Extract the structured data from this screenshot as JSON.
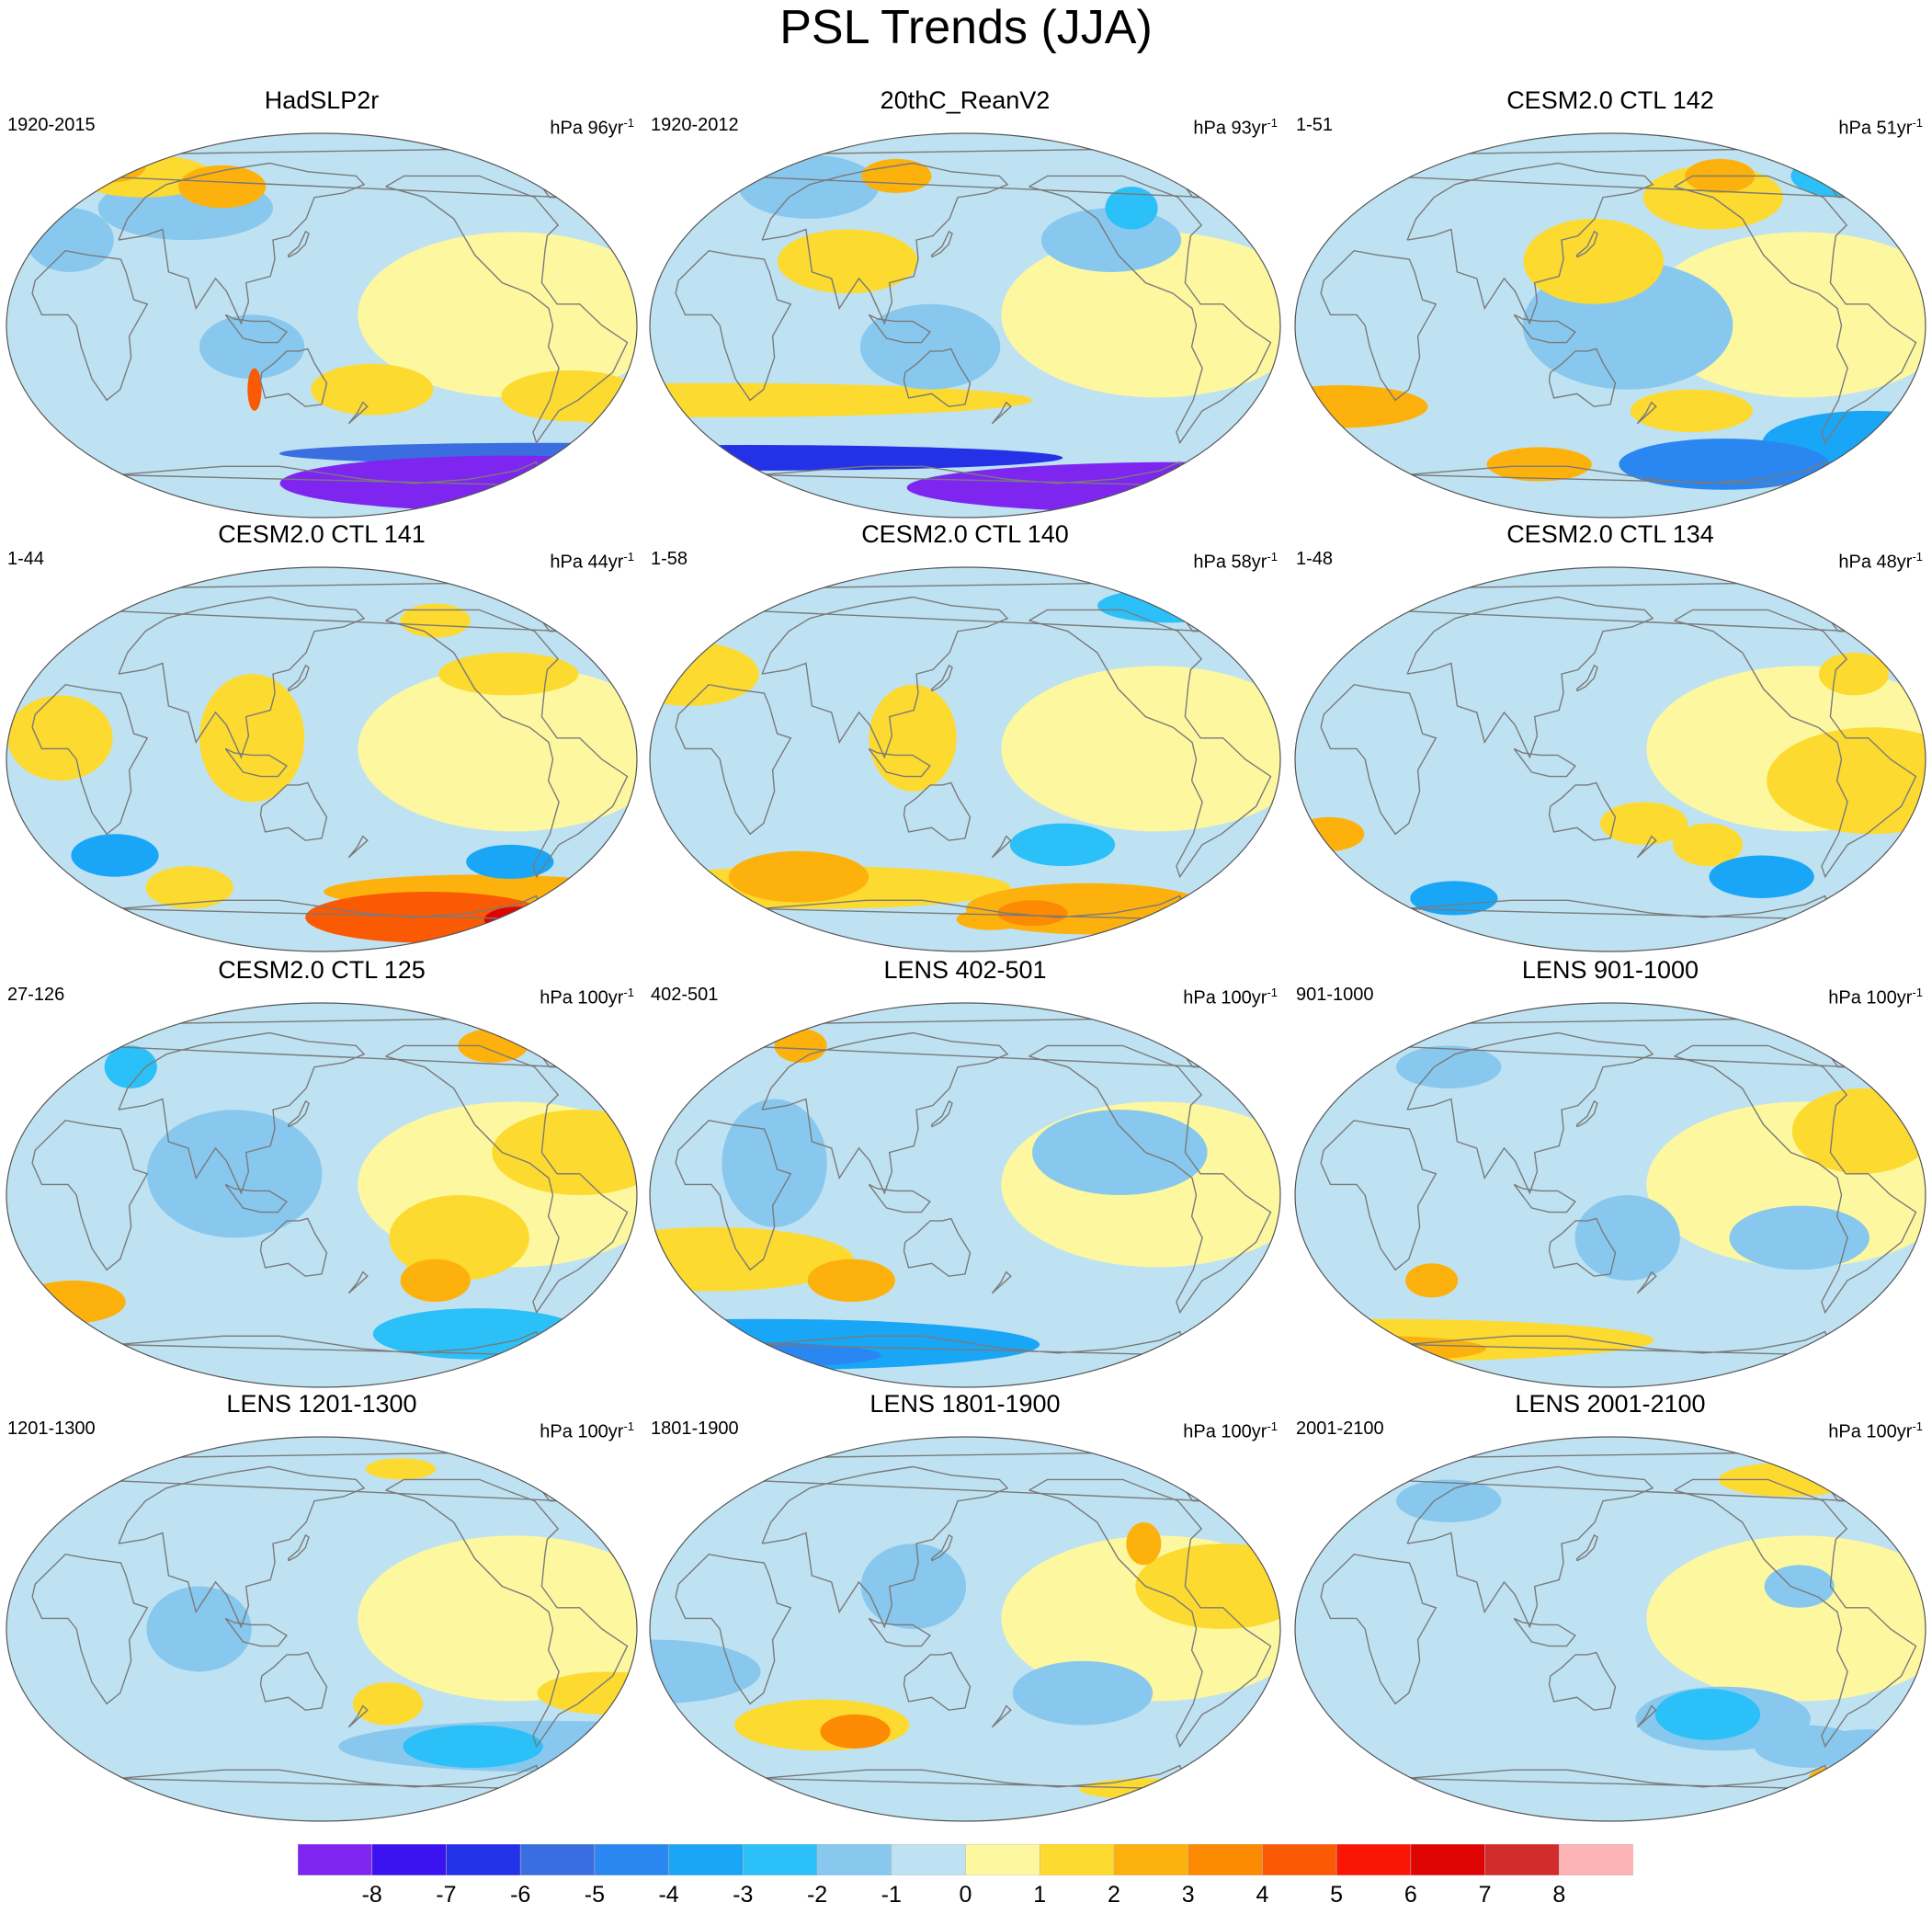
{
  "title": "PSL Trends (JJA)",
  "panels": [
    {
      "title": "HadSLP2r",
      "period": "1920-2015",
      "units_prefix": "hPa ",
      "units_number": "96",
      "units_unit": "yr",
      "units_exp": "-1",
      "features": [
        {
          "v": -9,
          "lon": -70,
          "lat": -74,
          "rx": 130,
          "ry": 13
        },
        {
          "v": -5,
          "lon": -60,
          "lat": -60,
          "rx": 150,
          "ry": 5
        },
        {
          "v": 1,
          "lon": -60,
          "lat": -33,
          "rx": 40,
          "ry": 12
        },
        {
          "v": 1,
          "lon": 180,
          "lat": -30,
          "rx": 35,
          "ry": 12
        },
        {
          "v": 1,
          "lon": -40,
          "lat": -40,
          "rx": 15,
          "ry": 6
        },
        {
          "v": -1,
          "lon": 60,
          "lat": 55,
          "rx": 50,
          "ry": 15
        },
        {
          "v": -1,
          "lon": -5,
          "lat": 40,
          "rx": 25,
          "ry": 15
        },
        {
          "v": 1,
          "lon": 20,
          "lat": 70,
          "rx": 40,
          "ry": 10
        },
        {
          "v": 2,
          "lon": 80,
          "lat": 65,
          "rx": 25,
          "ry": 10
        },
        {
          "v": 2,
          "lon": -10,
          "lat": 75,
          "rx": 20,
          "ry": 8
        },
        {
          "v": -1,
          "lon": 110,
          "lat": -10,
          "rx": 30,
          "ry": 15
        },
        {
          "v": 4,
          "lon": 110,
          "lat": -30,
          "rx": 4,
          "ry": 10
        }
      ]
    },
    {
      "title": "20thC_ReanV2",
      "period": "1920-2012",
      "units_prefix": "hPa ",
      "units_number": "93",
      "units_unit": "yr",
      "units_exp": "-1",
      "features": [
        {
          "v": -9,
          "lon": -40,
          "lat": -76,
          "rx": 160,
          "ry": 12
        },
        {
          "v": -6,
          "lon": 0,
          "lat": -62,
          "rx": 180,
          "ry": 6
        },
        {
          "v": 1,
          "lon": 0,
          "lat": -35,
          "rx": 180,
          "ry": 8
        },
        {
          "v": -1,
          "lon": 130,
          "lat": -10,
          "rx": 40,
          "ry": 20
        },
        {
          "v": -1,
          "lon": -120,
          "lat": 40,
          "rx": 40,
          "ry": 15
        },
        {
          "v": -2,
          "lon": -100,
          "lat": 55,
          "rx": 15,
          "ry": 10
        },
        {
          "v": 1,
          "lon": 80,
          "lat": 30,
          "rx": 40,
          "ry": 15
        },
        {
          "v": 2,
          "lon": 100,
          "lat": 70,
          "rx": 20,
          "ry": 8
        },
        {
          "v": -1,
          "lon": 40,
          "lat": 65,
          "rx": 40,
          "ry": 15
        }
      ]
    },
    {
      "title": "CESM2.0 CTL 142",
      "period": "1-51",
      "units_prefix": "hPa ",
      "units_number": "51",
      "units_unit": "yr",
      "units_exp": "-1",
      "features": [
        {
          "v": -4,
          "lon": -130,
          "lat": -65,
          "rx": 60,
          "ry": 12
        },
        {
          "v": -3,
          "lon": -40,
          "lat": -55,
          "rx": 60,
          "ry": 15
        },
        {
          "v": 2,
          "lon": -15,
          "lat": -38,
          "rx": 50,
          "ry": 10
        },
        {
          "v": 2,
          "lon": 100,
          "lat": -65,
          "rx": 30,
          "ry": 8
        },
        {
          "v": 1,
          "lon": -160,
          "lat": -40,
          "rx": 35,
          "ry": 10
        },
        {
          "v": -1,
          "lon": 160,
          "lat": 0,
          "rx": 60,
          "ry": 30
        },
        {
          "v": 1,
          "lon": -140,
          "lat": 60,
          "rx": 40,
          "ry": 15
        },
        {
          "v": 2,
          "lon": -130,
          "lat": 70,
          "rx": 20,
          "ry": 8
        },
        {
          "v": -2,
          "lon": -40,
          "lat": 70,
          "rx": 30,
          "ry": 10
        },
        {
          "v": 1,
          "lon": 140,
          "lat": 30,
          "rx": 40,
          "ry": 20
        }
      ]
    },
    {
      "title": "CESM2.0 CTL 141",
      "period": "1-44",
      "units_prefix": "hPa ",
      "units_number": "44",
      "units_unit": "yr",
      "units_exp": "-1",
      "features": [
        {
          "v": 4,
          "lon": -130,
          "lat": -74,
          "rx": 70,
          "ry": 12
        },
        {
          "v": 6,
          "lon": -60,
          "lat": -75,
          "rx": 20,
          "ry": 6
        },
        {
          "v": 2,
          "lon": -100,
          "lat": -62,
          "rx": 90,
          "ry": 8
        },
        {
          "v": -3,
          "lon": -90,
          "lat": -48,
          "rx": 25,
          "ry": 8
        },
        {
          "v": -3,
          "lon": 20,
          "lat": -45,
          "rx": 25,
          "ry": 10
        },
        {
          "v": 1,
          "lon": 60,
          "lat": -60,
          "rx": 25,
          "ry": 10
        },
        {
          "v": 1,
          "lon": -95,
          "lat": 40,
          "rx": 40,
          "ry": 10
        },
        {
          "v": 1,
          "lon": -130,
          "lat": 65,
          "rx": 20,
          "ry": 8
        },
        {
          "v": 1,
          "lon": 0,
          "lat": 10,
          "rx": 30,
          "ry": 20
        },
        {
          "v": 1,
          "lon": 110,
          "lat": 10,
          "rx": 30,
          "ry": 30
        }
      ]
    },
    {
      "title": "CESM2.0 CTL 140",
      "period": "1-58",
      "units_prefix": "hPa ",
      "units_number": "58",
      "units_unit": "yr",
      "units_exp": "-1",
      "features": [
        {
          "v": 2,
          "lon": -120,
          "lat": -70,
          "rx": 70,
          "ry": 12
        },
        {
          "v": 3,
          "lon": -160,
          "lat": -72,
          "rx": 20,
          "ry": 6
        },
        {
          "v": 2,
          "lon": 40,
          "lat": -55,
          "rx": 40,
          "ry": 12
        },
        {
          "v": 1,
          "lon": 50,
          "lat": -60,
          "rx": 110,
          "ry": 10
        },
        {
          "v": 2,
          "lon": 170,
          "lat": -75,
          "rx": 20,
          "ry": 5
        },
        {
          "v": -2,
          "lon": -150,
          "lat": -40,
          "rx": 30,
          "ry": 10
        },
        {
          "v": 1,
          "lon": -20,
          "lat": 40,
          "rx": 40,
          "ry": 15
        },
        {
          "v": -2,
          "lon": -60,
          "lat": 72,
          "rx": 40,
          "ry": 8
        },
        {
          "v": 1,
          "lon": 120,
          "lat": 10,
          "rx": 25,
          "ry": 25
        }
      ]
    },
    {
      "title": "CESM2.0 CTL 134",
      "period": "1-48",
      "units_prefix": "hPa ",
      "units_number": "48",
      "units_unit": "yr",
      "units_exp": "-1",
      "features": [
        {
          "v": -3,
          "lon": -110,
          "lat": -55,
          "rx": 30,
          "ry": 10
        },
        {
          "v": -3,
          "lon": 40,
          "lat": -65,
          "rx": 25,
          "ry": 8
        },
        {
          "v": 1,
          "lon": -60,
          "lat": -10,
          "rx": 60,
          "ry": 25
        },
        {
          "v": 1,
          "lon": 170,
          "lat": -30,
          "rx": 25,
          "ry": 10
        },
        {
          "v": 2,
          "lon": -20,
          "lat": -35,
          "rx": 20,
          "ry": 8
        },
        {
          "v": 1,
          "lon": -150,
          "lat": -40,
          "rx": 20,
          "ry": 10
        },
        {
          "v": 1,
          "lon": -60,
          "lat": 40,
          "rx": 20,
          "ry": 10
        }
      ]
    },
    {
      "title": "CESM2.0 CTL 125",
      "period": "27-126",
      "units_prefix": "hPa ",
      "units_number": "100",
      "units_unit": "yr",
      "units_exp": "-1",
      "features": [
        {
          "v": -2,
          "lon": -100,
          "lat": -65,
          "rx": 60,
          "ry": 12
        },
        {
          "v": 2,
          "lon": -140,
          "lat": -40,
          "rx": 20,
          "ry": 10
        },
        {
          "v": 2,
          "lon": -10,
          "lat": -50,
          "rx": 30,
          "ry": 10
        },
        {
          "v": 1,
          "lon": -130,
          "lat": -20,
          "rx": 40,
          "ry": 20
        },
        {
          "v": 1,
          "lon": -60,
          "lat": 20,
          "rx": 50,
          "ry": 20
        },
        {
          "v": -1,
          "lon": 100,
          "lat": 10,
          "rx": 50,
          "ry": 30
        },
        {
          "v": 2,
          "lon": -85,
          "lat": 70,
          "rx": 20,
          "ry": 8
        },
        {
          "v": -2,
          "lon": 20,
          "lat": 60,
          "rx": 15,
          "ry": 10
        }
      ]
    },
    {
      "title": "LENS 402-501",
      "period": "402-501",
      "units_prefix": "hPa ",
      "units_number": "100",
      "units_unit": "yr",
      "units_exp": "-1",
      "features": [
        {
          "v": -3,
          "lon": 0,
          "lat": -70,
          "rx": 160,
          "ry": 12
        },
        {
          "v": -4,
          "lon": -20,
          "lat": -75,
          "rx": 80,
          "ry": 6
        },
        {
          "v": 2,
          "lon": 80,
          "lat": -40,
          "rx": 25,
          "ry": 10
        },
        {
          "v": 1,
          "lon": 0,
          "lat": -30,
          "rx": 80,
          "ry": 15
        },
        {
          "v": -1,
          "lon": -120,
          "lat": 20,
          "rx": 50,
          "ry": 20
        },
        {
          "v": -1,
          "lon": 40,
          "lat": 15,
          "rx": 30,
          "ry": 30
        },
        {
          "v": 2,
          "lon": 30,
          "lat": 70,
          "rx": 15,
          "ry": 8
        }
      ]
    },
    {
      "title": "LENS 901-1000",
      "period": "901-1000",
      "units_prefix": "hPa ",
      "units_number": "100",
      "units_unit": "yr",
      "units_exp": "-1",
      "features": [
        {
          "v": 1,
          "lon": -20,
          "lat": -68,
          "rx": 160,
          "ry": 10
        },
        {
          "v": 2,
          "lon": -20,
          "lat": -72,
          "rx": 60,
          "ry": 6
        },
        {
          "v": 2,
          "lon": 40,
          "lat": -40,
          "rx": 15,
          "ry": 8
        },
        {
          "v": -1,
          "lon": 160,
          "lat": -20,
          "rx": 30,
          "ry": 20
        },
        {
          "v": -1,
          "lon": -100,
          "lat": -20,
          "rx": 40,
          "ry": 15
        },
        {
          "v": 1,
          "lon": -60,
          "lat": 30,
          "rx": 40,
          "ry": 20
        },
        {
          "v": -1,
          "lon": 40,
          "lat": 60,
          "rx": 30,
          "ry": 10
        }
      ]
    },
    {
      "title": "LENS 1201-1300",
      "period": "1201-1300",
      "units_prefix": "hPa ",
      "units_number": "100",
      "units_unit": "yr",
      "units_exp": "-1",
      "features": [
        {
          "v": -2,
          "lon": -110,
          "lat": -55,
          "rx": 40,
          "ry": 10
        },
        {
          "v": -1,
          "lon": -60,
          "lat": -55,
          "rx": 120,
          "ry": 12
        },
        {
          "v": 1,
          "lon": -40,
          "lat": -30,
          "rx": 40,
          "ry": 10
        },
        {
          "v": 1,
          "lon": -170,
          "lat": -35,
          "rx": 20,
          "ry": 10
        },
        {
          "v": -1,
          "lon": 80,
          "lat": 0,
          "rx": 30,
          "ry": 20
        },
        {
          "v": 1,
          "lon": -150,
          "lat": 75,
          "rx": 20,
          "ry": 5
        }
      ]
    },
    {
      "title": "LENS 1801-1900",
      "period": "1801-1900",
      "units_prefix": "hPa ",
      "units_number": "100",
      "units_unit": "yr",
      "units_exp": "-1",
      "features": [
        {
          "v": 3,
          "lon": 80,
          "lat": -48,
          "rx": 20,
          "ry": 8
        },
        {
          "v": 1,
          "lon": 60,
          "lat": -45,
          "rx": 50,
          "ry": 12
        },
        {
          "v": 1,
          "lon": -70,
          "lat": -75,
          "rx": 40,
          "ry": 5
        },
        {
          "v": -1,
          "lon": -140,
          "lat": -30,
          "rx": 40,
          "ry": 15
        },
        {
          "v": -1,
          "lon": -30,
          "lat": -20,
          "rx": 60,
          "ry": 15
        },
        {
          "v": -1,
          "lon": 120,
          "lat": 20,
          "rx": 30,
          "ry": 20
        },
        {
          "v": 1,
          "lon": -60,
          "lat": 20,
          "rx": 50,
          "ry": 20
        },
        {
          "v": 2,
          "lon": -100,
          "lat": 40,
          "rx": 10,
          "ry": 10
        }
      ]
    },
    {
      "title": "LENS 2001-2100",
      "period": "2001-2100",
      "units_prefix": "hPa ",
      "units_number": "100",
      "units_unit": "yr",
      "units_exp": "-1",
      "features": [
        {
          "v": -2,
          "lon": -150,
          "lat": -40,
          "rx": 30,
          "ry": 12
        },
        {
          "v": -1,
          "lon": -140,
          "lat": -42,
          "rx": 50,
          "ry": 15
        },
        {
          "v": 2,
          "lon": -40,
          "lat": -70,
          "rx": 20,
          "ry": 6
        },
        {
          "v": -1,
          "lon": -80,
          "lat": -55,
          "rx": 30,
          "ry": 10
        },
        {
          "v": -1,
          "lon": -40,
          "lat": -55,
          "rx": 30,
          "ry": 8
        },
        {
          "v": 1,
          "lon": -80,
          "lat": 70,
          "rx": 40,
          "ry": 8
        },
        {
          "v": -1,
          "lon": 40,
          "lat": 60,
          "rx": 30,
          "ry": 10
        },
        {
          "v": -1,
          "lon": -100,
          "lat": 20,
          "rx": 20,
          "ry": 10
        }
      ]
    }
  ],
  "colorbar": {
    "colors": [
      "#7e26f0",
      "#3b13f0",
      "#2332e6",
      "#3a6ee0",
      "#2a86f0",
      "#1aa6f6",
      "#2cc0f8",
      "#88c8ee",
      "#bfe2f2",
      "#fdf8a0",
      "#fcda30",
      "#fdb10c",
      "#fc8a02",
      "#fb5a05",
      "#fb1505",
      "#de0404",
      "#d22c2c",
      "#fcb4b4"
    ],
    "labels": [
      "-8",
      "-7",
      "-6",
      "-5",
      "-4",
      "-3",
      "-2",
      "-1",
      "0",
      "1",
      "2",
      "3",
      "4",
      "5",
      "6",
      "7",
      "8"
    ]
  },
  "colors": {
    "coastline": "#7a7a7a",
    "background": "#ffffff"
  }
}
